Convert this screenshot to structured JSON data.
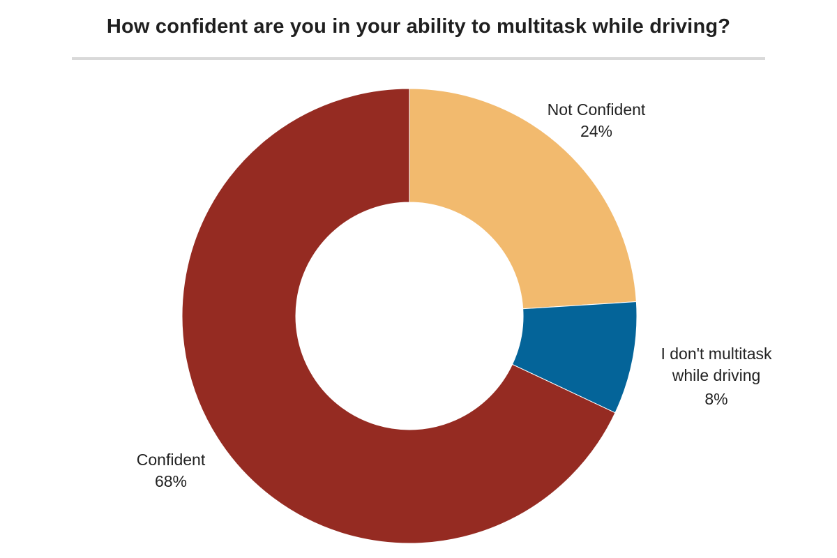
{
  "chart_data": {
    "type": "pie",
    "variant": "donut",
    "title": "How confident are you in your ability to multitask while driving?",
    "slices": [
      {
        "label": "Not Confident",
        "label_lines": [
          "Not Confident"
        ],
        "value": 24,
        "display": "24%",
        "color": "#F2BA6E"
      },
      {
        "label": "I don't multitask while driving",
        "label_lines": [
          "I don't multitask",
          "while driving"
        ],
        "value": 8,
        "display": "8%",
        "color": "#046499"
      },
      {
        "label": "Confident",
        "label_lines": [
          "Confident"
        ],
        "value": 68,
        "display": "68%",
        "color": "#952B22"
      }
    ],
    "start_angle_deg": 0,
    "direction": "clockwise",
    "legend": "none"
  }
}
